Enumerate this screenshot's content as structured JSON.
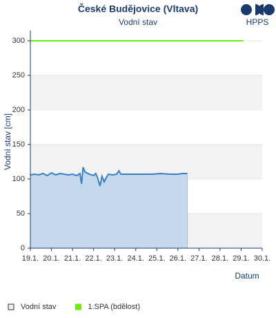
{
  "chart_data": {
    "type": "line",
    "title": "České Budějovice (Vltava)",
    "subtitle": "Vodní stav",
    "logo_text": "HPPS",
    "y_label": "Vodní stav [cm]",
    "x_label": "Datum",
    "ylim": [
      0,
      315
    ],
    "yticks": [
      0,
      50,
      100,
      150,
      200,
      250,
      300
    ],
    "xlim": [
      19,
      30
    ],
    "xticks": [
      {
        "value": 19,
        "label": "19.1."
      },
      {
        "value": 20,
        "label": "20.1."
      },
      {
        "value": 21,
        "label": "21.1."
      },
      {
        "value": 22,
        "label": "22.1."
      },
      {
        "value": 23,
        "label": "23.1."
      },
      {
        "value": 24,
        "label": "24.1."
      },
      {
        "value": 25,
        "label": "25.1."
      },
      {
        "value": 26,
        "label": "26.1."
      },
      {
        "value": 27,
        "label": "27.1."
      },
      {
        "value": 28,
        "label": "28.1."
      },
      {
        "value": 29,
        "label": "29.1."
      },
      {
        "value": 30,
        "label": "30.1."
      }
    ],
    "grid": true,
    "bands": true,
    "series": [
      {
        "name": "Vodní stav",
        "color": "#3a7fc1",
        "fill": "#c5d9ee",
        "x": [
          19.0,
          19.2,
          19.4,
          19.6,
          19.8,
          20.0,
          20.2,
          20.4,
          20.6,
          20.8,
          21.0,
          21.2,
          21.35,
          21.43,
          21.5,
          21.6,
          21.8,
          22.0,
          22.1,
          22.2,
          22.3,
          22.4,
          22.5,
          22.6,
          22.7,
          22.9,
          23.1,
          23.2,
          23.3,
          23.6,
          24.0,
          24.4,
          24.8,
          25.2,
          25.6,
          26.0,
          26.2,
          26.45
        ],
        "values": [
          106,
          107,
          106,
          108,
          105,
          109,
          106,
          108,
          107,
          106,
          107,
          105,
          108,
          93,
          117,
          110,
          107,
          105,
          108,
          101,
          90,
          104,
          96,
          102,
          107,
          106,
          107,
          112,
          107,
          107,
          107,
          107,
          107,
          108,
          107,
          107,
          108,
          108
        ]
      },
      {
        "name": "1.SPA (bdělost)",
        "color": "#66ee00",
        "x": [
          19.0,
          29.1
        ],
        "values": [
          300,
          300
        ]
      }
    ]
  }
}
